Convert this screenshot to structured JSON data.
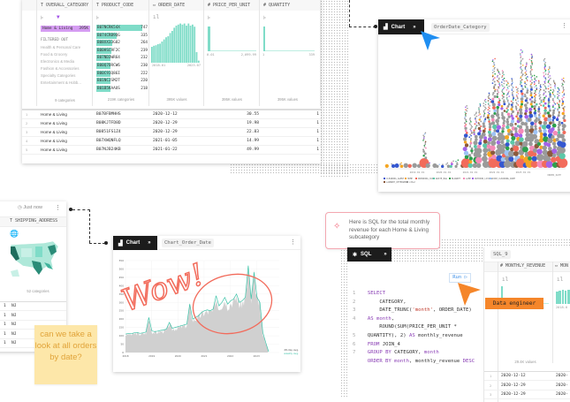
{
  "table": {
    "columns": [
      {
        "icon": "text-type-icon",
        "name": "OVERALL_CATEGORY"
      },
      {
        "icon": "text-type-icon",
        "name": "PRODUCT_CODE"
      },
      {
        "icon": "date-type-icon",
        "name": "ORDER_DATE"
      },
      {
        "icon": "number-type-icon",
        "name": "PRICE_PER_UNIT"
      },
      {
        "icon": "number-type-icon",
        "name": "QUANTITY"
      }
    ],
    "category_summary": {
      "selected": {
        "label": "Home & Living",
        "count": "395K"
      },
      "filtered_out_label": "FILTERED OUT",
      "filtered_out": [
        "Health & Personal Care",
        "Food & Grocery",
        "Electronics & Media",
        "Fashion & Accessories",
        "Specialty Categories",
        "Entertainment & Hobb..."
      ],
      "footer": "9 categories"
    },
    "product_summary": {
      "items": [
        {
          "code": "B07NCRK54X",
          "count": 747
        },
        {
          "code": "B074CRB9QG",
          "count": 335
        },
        {
          "code": "B08XX33G82",
          "count": 264
        },
        {
          "code": "B00HSC9F2C",
          "count": 239
        },
        {
          "code": "B07ND3WR64",
          "count": 232
        },
        {
          "code": "B00Q7ORCW6",
          "count": 230
        },
        {
          "code": "B00C91Q86I",
          "count": 222
        },
        {
          "code": "B01NCJSM2T",
          "count": 220
        },
        {
          "code": "B01B5KAAUS",
          "count": 218
        }
      ],
      "footer": "219K categories"
    },
    "date_summary": {
      "min": "2018-01",
      "max": "2023-07",
      "footer": "395K values",
      "histogram": [
        30,
        32,
        33,
        35,
        36,
        40,
        44,
        48,
        50,
        56,
        60,
        66,
        70,
        72,
        74,
        72,
        74,
        70,
        74,
        70,
        72,
        68,
        20,
        4
      ]
    },
    "price_summary": {
      "min": "0.01",
      "max": "2,099.99",
      "footer": "395K values"
    },
    "quantity_summary": {
      "min": "1",
      "max": "339",
      "footer": "395K values"
    },
    "rows": [
      [
        "1",
        "Home & Living",
        "B07BFBMHHS",
        "2020-12-12",
        "30.55",
        "1"
      ],
      [
        "2",
        "Home & Living",
        "B08KJTFD8D",
        "2020-12-29",
        "19.98",
        "1"
      ],
      [
        "3",
        "Home & Living",
        "B0851FS1Z4",
        "2020-12-29",
        "22.83",
        "1"
      ],
      [
        "4",
        "Home & Living",
        "B07XWQNFLQ",
        "2021-01-05",
        "14.99",
        "1"
      ],
      [
        "5",
        "Home & Living",
        "B07NJB24KB",
        "2021-01-22",
        "49.99",
        "1"
      ]
    ]
  },
  "bubble_chart": {
    "tab_label": "Chart",
    "name": "OrderDate_Category",
    "x_ticks": [
      "2019-01-01",
      "2020-01-01",
      "2021-01-01",
      "2022-01-01",
      "2023-01-01"
    ],
    "x_axis_label": "ORDER_DATE",
    "legend": [
      {
        "name": "CLEANING_AGENT",
        "color": "#3558d0"
      },
      {
        "name": "HOME",
        "color": "#f5a623"
      },
      {
        "name": "DRINKING_CUP",
        "color": "#f26b5b"
      },
      {
        "name": "WASTE_BAG",
        "color": "#5cc8a8"
      },
      {
        "name": "BLANKET",
        "color": "#2ca04c"
      },
      {
        "name": "LAMP",
        "color": "#f58bb8"
      },
      {
        "name": "OUTDOOR_LIVING",
        "color": "#a463e8"
      },
      {
        "name": "DISH_CLEANING_WIPE",
        "color": "#9ec3f5"
      },
      {
        "name": "LAUNDRY_DETERGENT",
        "color": "#8b5a3c"
      },
      {
        "name": "other",
        "color": "#9a9a9a"
      }
    ],
    "column_heights": [
      2,
      3,
      2,
      4,
      3,
      2,
      3,
      2,
      28,
      4,
      2,
      3,
      3,
      4,
      5,
      6,
      5,
      50,
      40,
      45,
      52,
      55,
      60,
      88,
      80,
      78,
      70,
      72,
      65,
      95,
      85,
      92,
      75,
      70,
      88,
      82,
      70,
      65,
      72
    ]
  },
  "left_panel": {
    "timestamp": "Just now",
    "column": "SHIPPING_ADDRESS",
    "footer": "52 categories",
    "rows": [
      [
        "1",
        "NJ"
      ],
      [
        "1",
        "NJ"
      ],
      [
        "1",
        "NJ"
      ],
      [
        "1",
        "NJ"
      ],
      [
        "1",
        "NJ"
      ]
    ]
  },
  "sticky_note": "can we take a look at all orders by date?",
  "line_chart": {
    "tab_label": "Chart",
    "name": "Chart_Order_Date",
    "y_ticks": [
      "0",
      "50",
      "100",
      "150",
      "200",
      "250",
      "300",
      "350",
      "400",
      "450",
      "500",
      "550"
    ],
    "x_ticks": [
      "2018",
      "2019",
      "2020",
      "2021",
      "2022",
      "2023"
    ],
    "legend": [
      "28-day avg.",
      "weekly avg."
    ],
    "annotation": "Wow!",
    "weekly_avg": [
      110,
      115,
      112,
      118,
      120,
      115,
      118,
      122,
      210,
      130,
      125,
      128,
      132,
      135,
      140,
      180,
      145,
      150,
      155,
      160,
      165,
      170,
      290,
      200,
      210,
      220,
      240,
      250,
      255,
      250,
      260,
      340,
      280,
      300,
      330,
      290,
      310,
      320,
      350,
      300,
      310,
      330,
      520,
      320,
      480,
      330,
      300,
      120,
      60,
      5
    ]
  },
  "ai_message": "Here is SQL for the total monthly revenue for each Home & Living subcategory",
  "sql_panel": {
    "tab_label": "SQL",
    "run_label": "Run",
    "result_name": "SQL_9",
    "result_columns": [
      "MONTHLY_REVENUE",
      "MON"
    ],
    "revenue_min": "0.13",
    "revenue_max": "10.9K",
    "month_min": "2018-0",
    "footer": "29.4K values",
    "result_rows": [
      [
        "1",
        "2020-12-12",
        "2020-"
      ],
      [
        "2",
        "2020-12-29",
        "2020-"
      ],
      [
        "3",
        "2020-12-29",
        "2020-"
      ]
    ]
  },
  "cursor_label": "Data engineer",
  "colors": {
    "teal": "#7fdcc8",
    "purple": "#d59cf2",
    "accent_orange": "#f5862a",
    "cursor_blue": "#1f8ef1",
    "annotation_red": "#f26b5b",
    "note_yellow": "#fde7a9"
  }
}
